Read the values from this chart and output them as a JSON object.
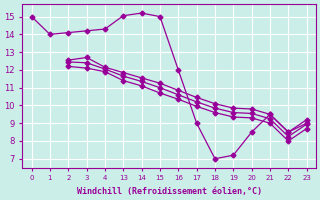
{
  "xlabel": "Windchill (Refroidissement éolien,°C)",
  "bg_color": "#cceee8",
  "line_color": "#990099",
  "grid_color": "#ffffff",
  "ylim": [
    6.5,
    15.7
  ],
  "yticks": [
    7,
    8,
    9,
    10,
    11,
    12,
    13,
    14,
    15
  ],
  "x_labels": [
    0,
    1,
    2,
    3,
    4,
    13,
    14,
    15,
    16,
    17,
    18,
    19,
    20,
    21,
    22,
    23
  ],
  "x_positions": [
    0,
    1,
    2,
    3,
    4,
    5,
    6,
    7,
    8,
    9,
    10,
    11,
    12,
    13,
    14,
    15
  ],
  "line1_pos": [
    0,
    1,
    2,
    3,
    4,
    5,
    6,
    7,
    8,
    9,
    10,
    11,
    12,
    13,
    14,
    15
  ],
  "line1_y": [
    15.0,
    14.0,
    14.1,
    14.2,
    14.3,
    15.05,
    15.2,
    15.0,
    12.0,
    9.0,
    7.0,
    7.2,
    8.5,
    9.5,
    8.5,
    9.0
  ],
  "line2_pos": [
    2,
    3,
    4,
    5,
    6,
    7,
    8,
    9,
    10,
    11,
    12,
    13,
    14,
    15
  ],
  "line2_y": [
    12.55,
    12.7,
    12.15,
    11.85,
    11.55,
    11.25,
    10.85,
    10.45,
    10.1,
    9.85,
    9.8,
    9.5,
    8.5,
    9.2
  ],
  "line3_pos": [
    2,
    3,
    4,
    5,
    6,
    7,
    8,
    9,
    10,
    11,
    12,
    13,
    14,
    15
  ],
  "line3_y": [
    12.45,
    12.4,
    12.05,
    11.65,
    11.35,
    11.0,
    10.6,
    10.2,
    9.85,
    9.6,
    9.55,
    9.25,
    8.25,
    8.95
  ],
  "line4_pos": [
    2,
    3,
    4,
    5,
    6,
    7,
    8,
    9,
    10,
    11,
    12,
    13,
    14,
    15
  ],
  "line4_y": [
    12.2,
    12.1,
    11.9,
    11.4,
    11.1,
    10.7,
    10.35,
    9.95,
    9.6,
    9.35,
    9.3,
    9.0,
    8.0,
    8.7
  ]
}
